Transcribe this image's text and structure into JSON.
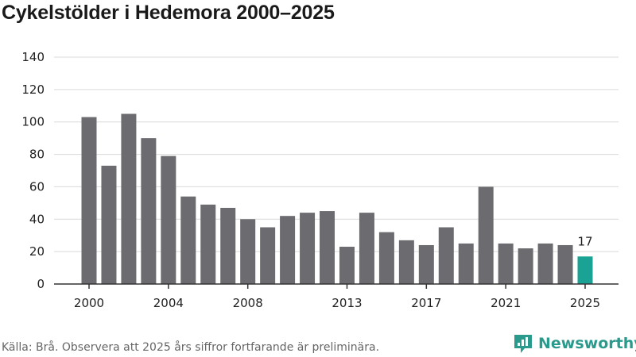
{
  "chart_data": {
    "type": "bar",
    "title": "Cykelstölder i Hedemora 2000–2025",
    "x": [
      2000,
      2001,
      2002,
      2003,
      2004,
      2005,
      2006,
      2007,
      2008,
      2009,
      2010,
      2011,
      2012,
      2013,
      2014,
      2015,
      2016,
      2017,
      2018,
      2019,
      2020,
      2021,
      2022,
      2023,
      2024,
      2025
    ],
    "values": [
      103,
      73,
      105,
      90,
      79,
      54,
      49,
      47,
      40,
      35,
      42,
      44,
      45,
      23,
      44,
      32,
      27,
      24,
      35,
      25,
      60,
      25,
      22,
      25,
      24,
      17
    ],
    "x_tick_labels": [
      "2000",
      "2004",
      "2008",
      "2013",
      "2017",
      "2021",
      "2025"
    ],
    "y_tick_labels": [
      "0",
      "20",
      "40",
      "60",
      "80",
      "100",
      "120",
      "140"
    ],
    "ylim": [
      0,
      140
    ],
    "grid": true,
    "highlight": {
      "index": 25,
      "label": "17"
    },
    "colors": {
      "bar": "#6c6b70",
      "highlight": "#1aa394",
      "grid": "#d9d9d9",
      "axis": "#333333"
    },
    "xlabel": "",
    "ylabel": ""
  },
  "footer": {
    "source": "Källa: Brå. Observera att 2025 års siffror fortfarande är preliminära.",
    "brand": "Newsworthy",
    "brand_icon": "newsworthy-logo-icon"
  }
}
